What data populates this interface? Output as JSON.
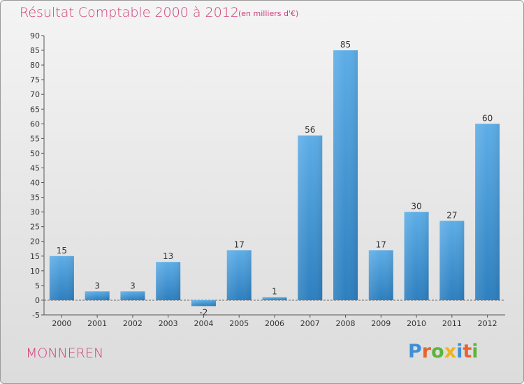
{
  "title": "Résultat Comptable 2000 à 2012",
  "subtitle": "(en milliers d'€)",
  "location": "MONNEREN",
  "logo": "Proxiti",
  "colors": {
    "title": "#d23c78",
    "bar_top": "#5dade7",
    "bar_bottom": "#2d7fbf",
    "logo_letters": [
      "#3f8fd6",
      "#e8642c",
      "#5bb53a",
      "#f2b21c",
      "#3f8fd6",
      "#e8642c",
      "#5bb53a"
    ]
  },
  "chart_data": {
    "type": "bar",
    "title": "Résultat Comptable 2000 à 2012",
    "ylabel": "en milliers d'€",
    "xlabel": "",
    "categories": [
      "2000",
      "2001",
      "2002",
      "2003",
      "2004",
      "2005",
      "2006",
      "2007",
      "2008",
      "2009",
      "2010",
      "2011",
      "2012"
    ],
    "values": [
      15,
      3,
      3,
      13,
      -2,
      17,
      1,
      56,
      85,
      17,
      30,
      27,
      60
    ],
    "ylim": [
      -5,
      90
    ],
    "yticks": [
      -5,
      0,
      5,
      10,
      15,
      20,
      25,
      30,
      35,
      40,
      45,
      50,
      55,
      60,
      65,
      70,
      75,
      80,
      85,
      90
    ],
    "grid": false,
    "legend": "none"
  }
}
